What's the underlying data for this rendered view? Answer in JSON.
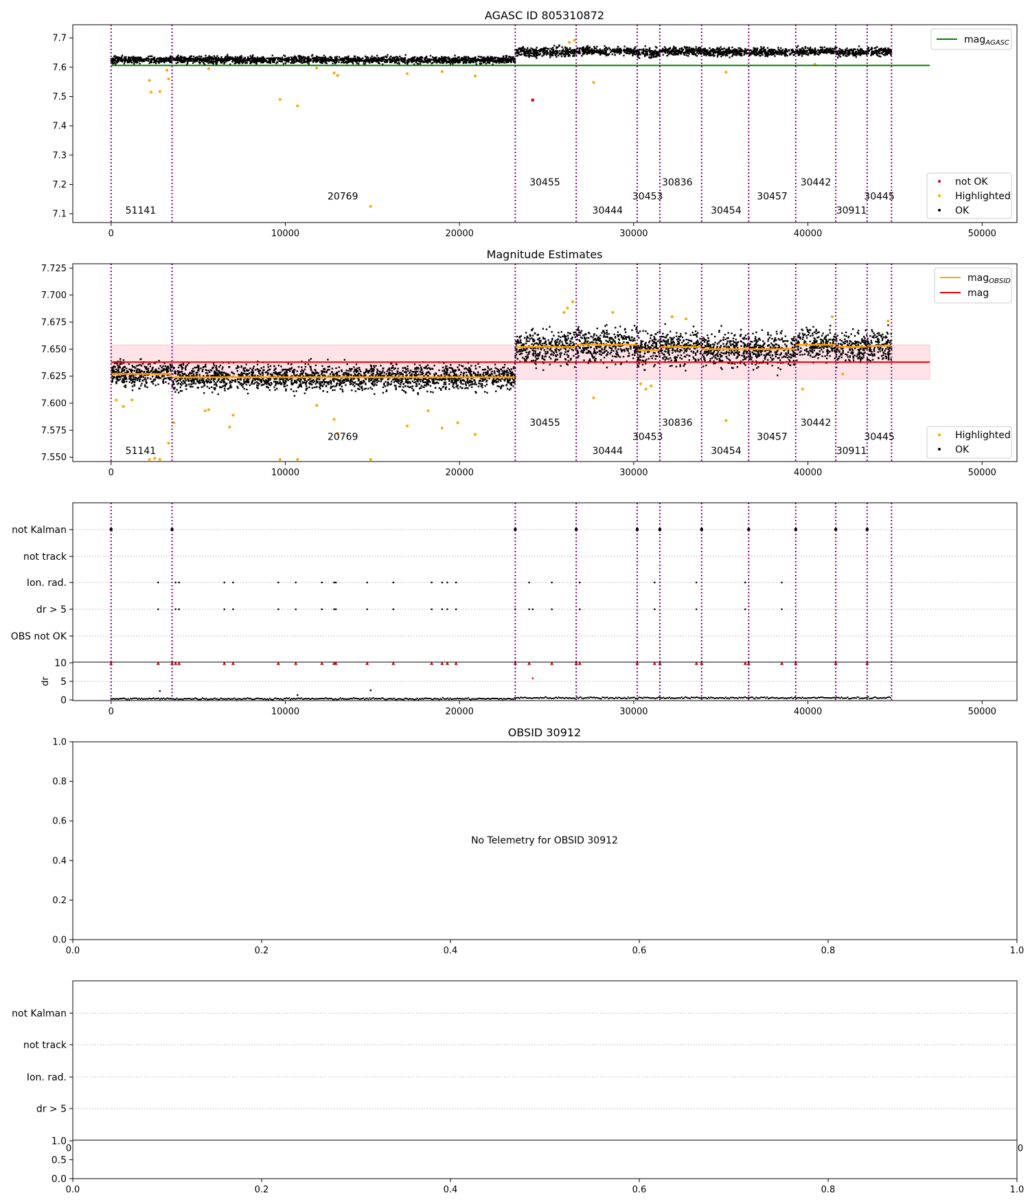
{
  "chart_data": [
    {
      "type": "scatter",
      "title": "AGASC ID 805310872",
      "xlim": [
        -2200,
        52000
      ],
      "ylim": [
        7.07,
        7.745
      ],
      "xticks": [
        "0",
        "10000",
        "20000",
        "30000",
        "40000",
        "50000"
      ],
      "xtick_values": [
        0,
        10000,
        20000,
        30000,
        40000,
        50000
      ],
      "yticks": [
        "7.1",
        "7.2",
        "7.3",
        "7.4",
        "7.5",
        "7.6",
        "7.7"
      ],
      "ytick_values": [
        7.1,
        7.2,
        7.3,
        7.4,
        7.5,
        7.6,
        7.7
      ],
      "reference_line": {
        "name": "mag_AGASC",
        "y": 7.606,
        "x_range": [
          0,
          47000
        ],
        "color": "#008000"
      },
      "legend_top": "top-right",
      "legend_top_entries": [
        {
          "label": "mag",
          "sub": "AGASC",
          "kind": "line",
          "color": "#008000"
        }
      ],
      "legend_bottom": "bottom-right",
      "legend_bottom_entries": [
        {
          "label": "not OK",
          "kind": "dot",
          "color": "#e00000"
        },
        {
          "label": "Highlighted",
          "kind": "dot",
          "color": "#ffa500"
        },
        {
          "label": "OK",
          "kind": "dot",
          "color": "#000000"
        }
      ],
      "obsid_boundaries": [
        0,
        3500,
        23200,
        26700,
        30200,
        31500,
        33900,
        36600,
        39300,
        41600,
        43400,
        44800
      ],
      "obsid_labels": [
        {
          "text": "51141",
          "x": 1700,
          "y": 7.1
        },
        {
          "text": "20769",
          "x": 13300,
          "y": 7.148
        },
        {
          "text": "30455",
          "x": 24900,
          "y": 7.196
        },
        {
          "text": "30444",
          "x": 28500,
          "y": 7.1
        },
        {
          "text": "30453",
          "x": 30800,
          "y": 7.148
        },
        {
          "text": "30836",
          "x": 32500,
          "y": 7.196
        },
        {
          "text": "30454",
          "x": 35300,
          "y": 7.1
        },
        {
          "text": "30457",
          "x": 37950,
          "y": 7.148
        },
        {
          "text": "30442",
          "x": 40450,
          "y": 7.196
        },
        {
          "text": "30911",
          "x": 42500,
          "y": 7.1
        },
        {
          "text": "30445",
          "x": 44100,
          "y": 7.148
        }
      ],
      "segment_levels": [
        {
          "x": [
            0,
            23200
          ],
          "mag": 7.625,
          "scatter": 0.006
        },
        {
          "x": [
            23200,
            26700
          ],
          "mag": 7.652,
          "scatter": 0.008
        },
        {
          "x": [
            26700,
            30200
          ],
          "mag": 7.655,
          "scatter": 0.007
        },
        {
          "x": [
            30200,
            31500
          ],
          "mag": 7.648,
          "scatter": 0.008
        },
        {
          "x": [
            31500,
            33900
          ],
          "mag": 7.655,
          "scatter": 0.007
        },
        {
          "x": [
            33900,
            36600
          ],
          "mag": 7.652,
          "scatter": 0.007
        },
        {
          "x": [
            36600,
            39300
          ],
          "mag": 7.652,
          "scatter": 0.007
        },
        {
          "x": [
            39300,
            41600
          ],
          "mag": 7.655,
          "scatter": 0.006
        },
        {
          "x": [
            41600,
            43400
          ],
          "mag": 7.65,
          "scatter": 0.007
        },
        {
          "x": [
            43400,
            44800
          ],
          "mag": 7.654,
          "scatter": 0.007
        }
      ],
      "highlighted_points": [
        [
          2200,
          7.555
        ],
        [
          2300,
          7.515
        ],
        [
          2800,
          7.517
        ],
        [
          3300,
          7.56
        ],
        [
          9700,
          7.49
        ],
        [
          10700,
          7.468
        ],
        [
          12800,
          7.58
        ],
        [
          13000,
          7.572
        ],
        [
          14900,
          7.125
        ],
        [
          17000,
          7.578
        ],
        [
          19000,
          7.585
        ],
        [
          27700,
          7.548
        ],
        [
          35300,
          7.583
        ],
        [
          40400,
          7.61
        ],
        [
          3200,
          7.59
        ],
        [
          5600,
          7.595
        ],
        [
          11800,
          7.597
        ],
        [
          20900,
          7.57
        ],
        [
          26300,
          7.685
        ],
        [
          26600,
          7.692
        ]
      ],
      "not_ok_points": [
        [
          24200,
          7.488
        ]
      ]
    },
    {
      "type": "scatter",
      "title": "Magnitude Estimates",
      "xlim": [
        -2200,
        52000
      ],
      "ylim": [
        7.546,
        7.729
      ],
      "xticks": [
        "0",
        "10000",
        "20000",
        "30000",
        "40000",
        "50000"
      ],
      "xtick_values": [
        0,
        10000,
        20000,
        30000,
        40000,
        50000
      ],
      "yticks": [
        "7.550",
        "7.575",
        "7.600",
        "7.625",
        "7.650",
        "7.675",
        "7.700",
        "7.725"
      ],
      "ytick_values": [
        7.55,
        7.575,
        7.6,
        7.625,
        7.65,
        7.675,
        7.7,
        7.725
      ],
      "mag_line": {
        "name": "mag",
        "y": 7.638,
        "x_range": [
          0,
          47000
        ],
        "color": "#e00000"
      },
      "mag_band": {
        "y": [
          7.622,
          7.654
        ],
        "color": "#ffc0cb"
      },
      "obsid_mags": [
        {
          "x": [
            0,
            3500
          ],
          "mag": 7.627
        },
        {
          "x": [
            3500,
            23200
          ],
          "mag": 7.624
        },
        {
          "x": [
            23200,
            26700
          ],
          "mag": 7.652
        },
        {
          "x": [
            26700,
            30200
          ],
          "mag": 7.654
        },
        {
          "x": [
            30200,
            31500
          ],
          "mag": 7.649
        },
        {
          "x": [
            31500,
            33900
          ],
          "mag": 7.652
        },
        {
          "x": [
            33900,
            36600
          ],
          "mag": 7.65
        },
        {
          "x": [
            36600,
            39300
          ],
          "mag": 7.65
        },
        {
          "x": [
            39300,
            41600
          ],
          "mag": 7.654
        },
        {
          "x": [
            41600,
            43400
          ],
          "mag": 7.652
        },
        {
          "x": [
            43400,
            44800
          ],
          "mag": 7.653
        }
      ],
      "legend_top": "top-right",
      "legend_top_entries": [
        {
          "label": "mag",
          "sub": "OBSID",
          "kind": "line",
          "color": "#ffa500"
        },
        {
          "label": "mag",
          "sub": "",
          "kind": "line",
          "color": "#e00000"
        }
      ],
      "legend_bottom": "bottom-right",
      "legend_bottom_entries": [
        {
          "label": "Highlighted",
          "kind": "dot",
          "color": "#ffa500"
        },
        {
          "label": "OK",
          "kind": "dot",
          "color": "#000000"
        }
      ],
      "obsid_labels": [
        {
          "text": "51141",
          "x": 1700,
          "y": 7.553
        },
        {
          "text": "20769",
          "x": 13300,
          "y": 7.566
        },
        {
          "text": "30455",
          "x": 24900,
          "y": 7.579
        },
        {
          "text": "30444",
          "x": 28500,
          "y": 7.553
        },
        {
          "text": "30453",
          "x": 30800,
          "y": 7.566
        },
        {
          "text": "30836",
          "x": 32500,
          "y": 7.579
        },
        {
          "text": "30454",
          "x": 35300,
          "y": 7.553
        },
        {
          "text": "30457",
          "x": 37950,
          "y": 7.566
        },
        {
          "text": "30442",
          "x": 40450,
          "y": 7.579
        },
        {
          "text": "30911",
          "x": 42500,
          "y": 7.553
        },
        {
          "text": "30445",
          "x": 44100,
          "y": 7.566
        }
      ],
      "highlighted_points": [
        [
          300,
          7.603
        ],
        [
          700,
          7.597
        ],
        [
          1200,
          7.603
        ],
        [
          2200,
          7.548
        ],
        [
          2500,
          7.549
        ],
        [
          2800,
          7.548
        ],
        [
          3300,
          7.563
        ],
        [
          3600,
          7.582
        ],
        [
          5400,
          7.593
        ],
        [
          5600,
          7.594
        ],
        [
          6800,
          7.578
        ],
        [
          7000,
          7.589
        ],
        [
          9700,
          7.548
        ],
        [
          10700,
          7.548
        ],
        [
          11800,
          7.598
        ],
        [
          12800,
          7.585
        ],
        [
          13000,
          7.572
        ],
        [
          14900,
          7.548
        ],
        [
          17000,
          7.579
        ],
        [
          18200,
          7.593
        ],
        [
          19000,
          7.577
        ],
        [
          19900,
          7.582
        ],
        [
          20900,
          7.571
        ],
        [
          26000,
          7.684
        ],
        [
          26200,
          7.688
        ],
        [
          26500,
          7.694
        ],
        [
          27700,
          7.605
        ],
        [
          28800,
          7.684
        ],
        [
          30400,
          7.618
        ],
        [
          30700,
          7.613
        ],
        [
          31000,
          7.616
        ],
        [
          32200,
          7.68
        ],
        [
          33000,
          7.678
        ],
        [
          35300,
          7.584
        ],
        [
          39700,
          7.613
        ],
        [
          41400,
          7.68
        ],
        [
          42000,
          7.627
        ],
        [
          44600,
          7.676
        ]
      ]
    },
    {
      "type": "scatter",
      "title": "",
      "flag_categories": [
        "not Kalman",
        "not track",
        "Ion. rad.",
        "dr > 5",
        "OBS not OK"
      ],
      "not_kalman_x": [
        0,
        3500,
        23200,
        26700,
        30200,
        31500,
        33900,
        36600,
        39300,
        41600,
        43400
      ],
      "ion_rad_x": [
        2700,
        3700,
        3900,
        6500,
        7000,
        9600,
        10600,
        12100,
        12800,
        12900,
        14700,
        16200,
        18400,
        19000,
        19300,
        19800,
        23200,
        24000,
        25300,
        26900,
        31200,
        33600,
        36400,
        38500
      ],
      "dr_gt5_x": [
        2700,
        3700,
        3900,
        6500,
        7000,
        9600,
        10600,
        12100,
        12800,
        12900,
        14700,
        16200,
        18400,
        19000,
        19300,
        19800,
        23200,
        24000,
        24200,
        25300,
        26900,
        31200,
        33600,
        36400,
        38500
      ],
      "dr_panel": {
        "ylabel": "dr",
        "yticks": [
          "0",
          "5",
          "10"
        ],
        "ytick_values": [
          0,
          5,
          10
        ],
        "ylim": [
          -0.5,
          10.5
        ],
        "xticks": [
          "0",
          "10000",
          "20000",
          "30000",
          "40000",
          "50000"
        ],
        "xtick_values": [
          0,
          10000,
          20000,
          30000,
          40000,
          50000
        ],
        "capped_x": [
          0,
          2700,
          3500,
          3700,
          3900,
          6500,
          7000,
          9600,
          10600,
          12100,
          12800,
          12900,
          14700,
          16200,
          18400,
          19000,
          19300,
          19800,
          23200,
          24000,
          25300,
          26700,
          26900,
          30200,
          31200,
          31500,
          33600,
          33900,
          36400,
          36600,
          38500,
          39300,
          41600,
          43400
        ],
        "outliers": [
          [
            2800,
            2.4
          ],
          [
            14900,
            2.6
          ],
          [
            24200,
            5.8
          ],
          [
            10700,
            1.3
          ]
        ],
        "baseline": 0.3
      }
    },
    {
      "type": "scatter",
      "title": "OBSID 30912",
      "message": "No Telemetry for OBSID 30912",
      "xlim": [
        0,
        1
      ],
      "ylim": [
        0,
        1
      ],
      "xticks": [
        "0.0",
        "0.2",
        "0.4",
        "0.6",
        "0.8",
        "1.0"
      ],
      "yticks": [
        "0.0",
        "0.2",
        "0.4",
        "0.6",
        "0.8",
        "1.0"
      ]
    },
    {
      "type": "scatter",
      "title": "",
      "flag_categories": [
        "not Kalman",
        "not track",
        "Ion. rad.",
        "dr > 5"
      ],
      "sub_panel": {
        "yticks": [
          "0.0",
          "0.5",
          "1.0"
        ],
        "xticks": [
          "0.0",
          "0.2",
          "0.4",
          "0.6",
          "0.8",
          "1.0"
        ],
        "clipped_left": "0",
        "clipped_right": "0"
      }
    }
  ]
}
